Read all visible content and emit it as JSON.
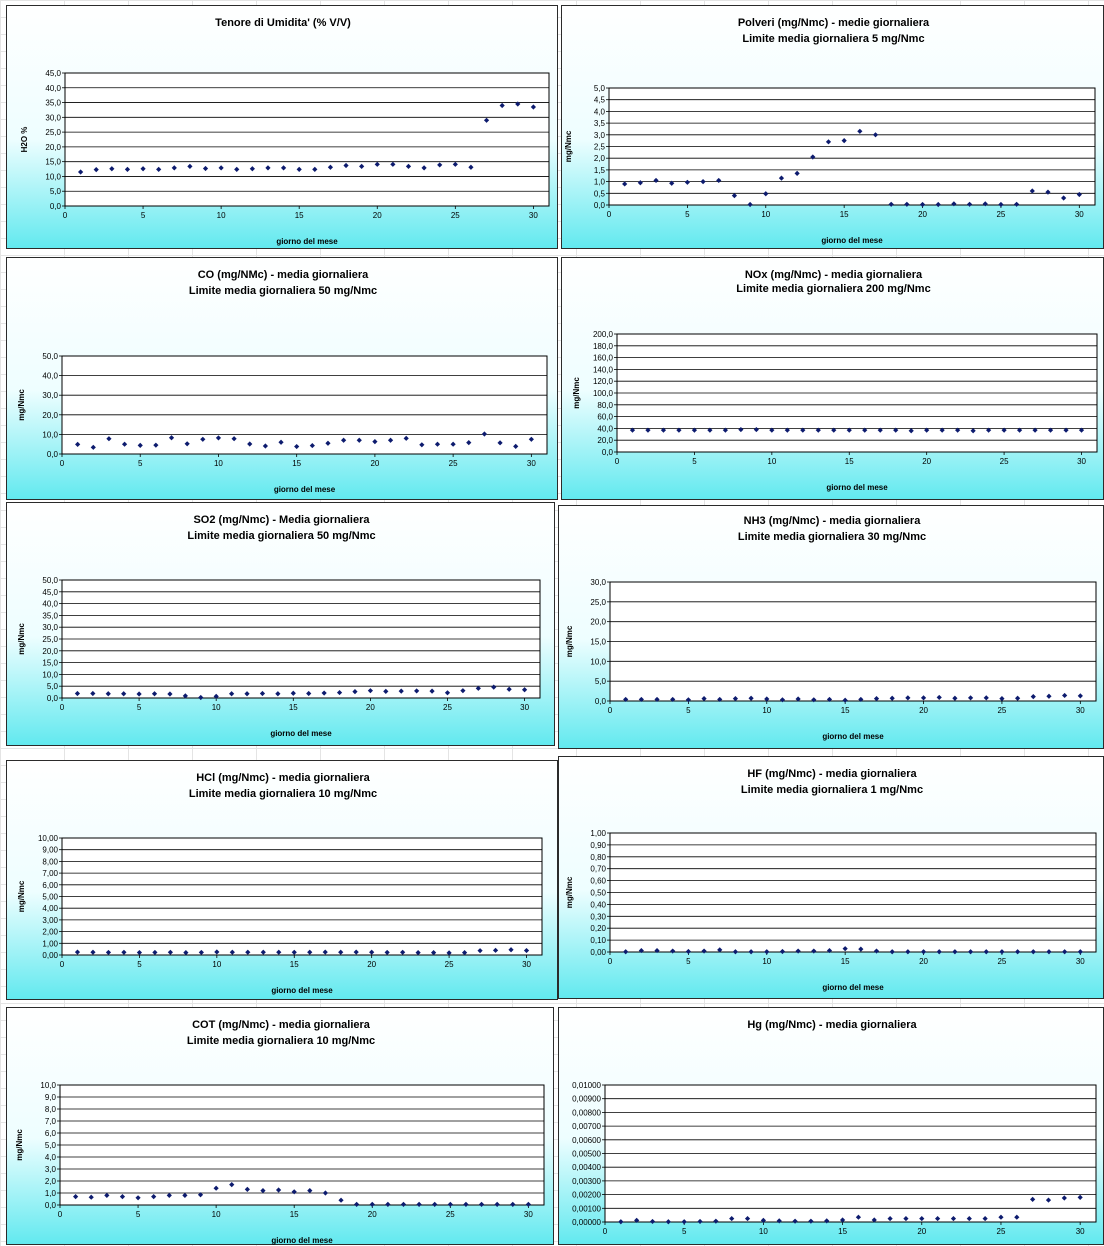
{
  "chart_data": [
    {
      "type": "scatter",
      "title": "Tenore di Umidita' (% V/V)",
      "subtitle": "",
      "xlabel": "giorno del mese",
      "ylabel": "H2O %",
      "xlim": [
        0,
        31
      ],
      "ylim": [
        0,
        45
      ],
      "xticks": [
        "0",
        "5",
        "10",
        "15",
        "20",
        "25",
        "30"
      ],
      "yticks": [
        "0,0",
        "5,0",
        "10,0",
        "15,0",
        "20,0",
        "25,0",
        "30,0",
        "35,0",
        "40,0",
        "45,0"
      ],
      "grid": true,
      "x": [
        1,
        2,
        3,
        4,
        5,
        6,
        7,
        8,
        9,
        10,
        11,
        12,
        13,
        14,
        15,
        16,
        17,
        18,
        19,
        20,
        21,
        22,
        23,
        24,
        25,
        26,
        27,
        28,
        29,
        30
      ],
      "y": [
        11.5,
        12.3,
        12.6,
        12.4,
        12.6,
        12.4,
        12.9,
        13.4,
        12.7,
        12.9,
        12.4,
        12.6,
        12.9,
        12.9,
        12.4,
        12.4,
        13.1,
        13.7,
        13.4,
        14.1,
        14.1,
        13.4,
        12.9,
        13.9,
        14.1,
        13.1,
        29.0,
        34.0,
        34.5,
        33.5
      ]
    },
    {
      "type": "scatter",
      "title": "Polveri (mg/Nmc) - medie giornaliera",
      "subtitle": "Limite media giornaliera 5 mg/Nmc",
      "xlabel": "giorno del mese",
      "ylabel": "mg/Nmc",
      "xlim": [
        0,
        31
      ],
      "ylim": [
        0,
        5
      ],
      "xticks": [
        "0",
        "5",
        "10",
        "15",
        "20",
        "25",
        "30"
      ],
      "yticks": [
        "0,0",
        "0,5",
        "1,0",
        "1,5",
        "2,0",
        "2,5",
        "3,0",
        "3,5",
        "4,0",
        "4,5",
        "5,0"
      ],
      "grid": true,
      "x": [
        1,
        2,
        3,
        4,
        5,
        6,
        7,
        8,
        9,
        10,
        11,
        12,
        13,
        14,
        15,
        16,
        17,
        18,
        19,
        20,
        21,
        22,
        23,
        24,
        25,
        26,
        27,
        28,
        29,
        30
      ],
      "y": [
        0.9,
        0.95,
        1.05,
        0.93,
        0.97,
        1.0,
        1.05,
        0.4,
        0.02,
        0.48,
        1.15,
        1.35,
        2.05,
        2.7,
        2.75,
        3.15,
        3.0,
        0.03,
        0.03,
        0.02,
        0.02,
        0.05,
        0.03,
        0.05,
        0.02,
        0.03,
        0.6,
        0.55,
        0.3,
        0.45
      ]
    },
    {
      "type": "scatter",
      "title": "CO (mg/NMc) - media giornaliera",
      "subtitle": "Limite media giornaliera 50 mg/Nmc",
      "xlabel": "giorno del mese",
      "ylabel": "mg/Nmc",
      "xlim": [
        0,
        31
      ],
      "ylim": [
        0,
        50
      ],
      "xticks": [
        "0",
        "5",
        "10",
        "15",
        "20",
        "25",
        "30"
      ],
      "yticks": [
        "0,0",
        "10,0",
        "20,0",
        "30,0",
        "40,0",
        "50,0"
      ],
      "grid": true,
      "x": [
        1,
        2,
        3,
        4,
        5,
        6,
        7,
        8,
        9,
        10,
        11,
        12,
        13,
        14,
        15,
        16,
        17,
        18,
        19,
        20,
        21,
        22,
        23,
        24,
        25,
        26,
        27,
        28,
        29,
        30
      ],
      "y": [
        4.9,
        3.4,
        7.8,
        5.0,
        4.4,
        4.5,
        8.3,
        5.2,
        7.5,
        8.2,
        7.8,
        5.1,
        4.1,
        6.0,
        3.8,
        4.3,
        5.5,
        7.0,
        7.0,
        6.3,
        7.0,
        8.0,
        4.7,
        5.0,
        5.0,
        5.8,
        10.2,
        5.7,
        3.9,
        7.5
      ]
    },
    {
      "type": "scatter",
      "title": "NOx (mg/Nmc) - media giornaliera",
      "subtitle": "Limite media giornaliera 200 mg/Nmc",
      "xlabel": "giorno del mese",
      "ylabel": "mg/Nmc",
      "xlim": [
        0,
        31
      ],
      "ylim": [
        0,
        200
      ],
      "xticks": [
        "0",
        "5",
        "10",
        "15",
        "20",
        "25",
        "30"
      ],
      "yticks": [
        "0,0",
        "20,0",
        "40,0",
        "60,0",
        "80,0",
        "100,0",
        "120,0",
        "140,0",
        "160,0",
        "180,0",
        "200,0"
      ],
      "grid": true,
      "x": [
        1,
        2,
        3,
        4,
        5,
        6,
        7,
        8,
        9,
        10,
        11,
        12,
        13,
        14,
        15,
        16,
        17,
        18,
        19,
        20,
        21,
        22,
        23,
        24,
        25,
        26,
        27,
        28,
        29,
        30
      ],
      "y": [
        37,
        37,
        37,
        37,
        37,
        37,
        37,
        38,
        38,
        37,
        37,
        37,
        37,
        37,
        37,
        37,
        37,
        37,
        36,
        37,
        37,
        37,
        36,
        37,
        37,
        37,
        37,
        37,
        37,
        37
      ]
    },
    {
      "type": "scatter",
      "title": "SO2 (mg/Nmc) - Media giornaliera",
      "subtitle": "Limite media giornaliera 50 mg/Nmc",
      "xlabel": "giorno del mese",
      "ylabel": "mg/Nmc",
      "xlim": [
        0,
        31
      ],
      "ylim": [
        0,
        50
      ],
      "xticks": [
        "0",
        "5",
        "10",
        "15",
        "20",
        "25",
        "30"
      ],
      "yticks": [
        "0,0",
        "5,0",
        "10,0",
        "15,0",
        "20,0",
        "25,0",
        "30,0",
        "35,0",
        "40,0",
        "45,0",
        "50,0"
      ],
      "grid": true,
      "x": [
        1,
        2,
        3,
        4,
        5,
        6,
        7,
        8,
        9,
        10,
        11,
        12,
        13,
        14,
        15,
        16,
        17,
        18,
        19,
        20,
        21,
        22,
        23,
        24,
        25,
        26,
        27,
        28,
        29,
        30
      ],
      "y": [
        1.9,
        1.9,
        1.8,
        1.8,
        1.7,
        1.8,
        1.7,
        0.9,
        0.2,
        0.7,
        1.8,
        1.8,
        1.9,
        1.8,
        2.0,
        1.9,
        2.1,
        2.3,
        2.7,
        3.1,
        2.8,
        2.9,
        3.0,
        2.9,
        2.2,
        3.1,
        4.1,
        4.6,
        3.7,
        3.5
      ]
    },
    {
      "type": "scatter",
      "title": "NH3 (mg/Nmc) - media giornaliera",
      "subtitle": "Limite media giornaliera 30 mg/Nmc",
      "xlabel": "giorno del mese",
      "ylabel": "mg/Nmc",
      "xlim": [
        0,
        31
      ],
      "ylim": [
        0,
        30
      ],
      "xticks": [
        "0",
        "5",
        "10",
        "15",
        "20",
        "25",
        "30"
      ],
      "yticks": [
        "0,0",
        "5,0",
        "10,0",
        "15,0",
        "20,0",
        "25,0",
        "30,0"
      ],
      "grid": true,
      "x": [
        1,
        2,
        3,
        4,
        5,
        6,
        7,
        8,
        9,
        10,
        11,
        12,
        13,
        14,
        15,
        16,
        17,
        18,
        19,
        20,
        21,
        22,
        23,
        24,
        25,
        26,
        27,
        28,
        29,
        30
      ],
      "y": [
        0.4,
        0.4,
        0.4,
        0.4,
        0.3,
        0.6,
        0.4,
        0.6,
        0.7,
        0.5,
        0.3,
        0.5,
        0.3,
        0.4,
        0.2,
        0.4,
        0.6,
        0.7,
        0.8,
        0.8,
        0.9,
        0.7,
        0.8,
        0.8,
        0.6,
        0.7,
        1.1,
        1.2,
        1.4,
        1.3
      ]
    },
    {
      "type": "scatter",
      "title": "HCl (mg/Nmc) - media giornaliera",
      "subtitle": "Limite media giornaliera 10 mg/Nmc",
      "xlabel": "giorno del mese",
      "ylabel": "mg/Nmc",
      "xlim": [
        0,
        31
      ],
      "ylim": [
        0,
        10
      ],
      "xticks": [
        "0",
        "5",
        "10",
        "15",
        "20",
        "25",
        "30"
      ],
      "yticks": [
        "0,00",
        "1,00",
        "2,00",
        "3,00",
        "4,00",
        "5,00",
        "6,00",
        "7,00",
        "8,00",
        "9,00",
        "10,00"
      ],
      "grid": true,
      "x": [
        1,
        2,
        3,
        4,
        5,
        6,
        7,
        8,
        9,
        10,
        11,
        12,
        13,
        14,
        15,
        16,
        17,
        18,
        19,
        20,
        21,
        22,
        23,
        24,
        25,
        26,
        27,
        28,
        29,
        30
      ],
      "y": [
        0.25,
        0.24,
        0.22,
        0.23,
        0.21,
        0.22,
        0.23,
        0.2,
        0.22,
        0.26,
        0.24,
        0.24,
        0.24,
        0.24,
        0.23,
        0.24,
        0.25,
        0.24,
        0.25,
        0.24,
        0.22,
        0.23,
        0.2,
        0.2,
        0.18,
        0.2,
        0.37,
        0.4,
        0.45,
        0.38
      ]
    },
    {
      "type": "scatter",
      "title": "HF (mg/Nmc) - media giornaliera",
      "subtitle": "Limite media giornaliera 1 mg/Nmc",
      "xlabel": "giorno del mese",
      "ylabel": "mg/Nmc",
      "xlim": [
        0,
        31
      ],
      "ylim": [
        0,
        1
      ],
      "xticks": [
        "0",
        "5",
        "10",
        "15",
        "20",
        "25",
        "30"
      ],
      "yticks": [
        "0,00",
        "0,10",
        "0,20",
        "0,30",
        "0,40",
        "0,50",
        "0,60",
        "0,70",
        "0,80",
        "0,90",
        "1,00"
      ],
      "grid": true,
      "x": [
        1,
        2,
        3,
        4,
        5,
        6,
        7,
        8,
        9,
        10,
        11,
        12,
        13,
        14,
        15,
        16,
        17,
        18,
        19,
        20,
        21,
        22,
        23,
        24,
        25,
        26,
        27,
        28,
        29,
        30
      ],
      "y": [
        0.002,
        0.012,
        0.012,
        0.008,
        0.004,
        0.008,
        0.018,
        0.002,
        0.002,
        0.002,
        0.004,
        0.008,
        0.008,
        0.012,
        0.028,
        0.024,
        0.008,
        0.002,
        0.002,
        0.002,
        0.002,
        0.002,
        0.002,
        0.002,
        0.002,
        0.002,
        0.002,
        0.002,
        0.002,
        0.002
      ]
    },
    {
      "type": "scatter",
      "title": "COT (mg/Nmc) - media giornaliera",
      "subtitle": "Limite media giornaliera 10 mg/Nmc",
      "xlabel": "giorno del mese",
      "ylabel": "mg/Nmc",
      "xlim": [
        0,
        31
      ],
      "ylim": [
        0,
        10
      ],
      "xticks": [
        "0",
        "5",
        "10",
        "15",
        "20",
        "25",
        "30"
      ],
      "yticks": [
        "0,0",
        "1,0",
        "2,0",
        "3,0",
        "4,0",
        "5,0",
        "6,0",
        "7,0",
        "8,0",
        "9,0",
        "10,0"
      ],
      "grid": true,
      "x": [
        1,
        2,
        3,
        4,
        5,
        6,
        7,
        8,
        9,
        10,
        11,
        12,
        13,
        14,
        15,
        16,
        17,
        18,
        19,
        20,
        21,
        22,
        23,
        24,
        25,
        26,
        27,
        28,
        29,
        30
      ],
      "y": [
        0.7,
        0.65,
        0.8,
        0.7,
        0.6,
        0.7,
        0.8,
        0.8,
        0.85,
        1.4,
        1.7,
        1.3,
        1.2,
        1.25,
        1.1,
        1.2,
        1.0,
        0.4,
        0.05,
        0.05,
        0.05,
        0.05,
        0.05,
        0.05,
        0.05,
        0.05,
        0.05,
        0.05,
        0.05,
        0.05
      ]
    },
    {
      "type": "scatter",
      "title": "Hg (mg/Nmc) - media giornaliera",
      "subtitle": "",
      "xlabel": "",
      "ylabel": "",
      "xlim": [
        0,
        31
      ],
      "ylim": [
        0,
        0.01
      ],
      "xticks": [
        "0",
        "5",
        "10",
        "15",
        "20",
        "25",
        "30"
      ],
      "yticks": [
        "0,00000",
        "0,00100",
        "0,00200",
        "0,00300",
        "0,00400",
        "0,00500",
        "0,00600",
        "0,00700",
        "0,00800",
        "0,00900",
        "0,01000"
      ],
      "grid": true,
      "x": [
        1,
        2,
        3,
        4,
        5,
        6,
        7,
        8,
        9,
        10,
        11,
        12,
        13,
        14,
        15,
        16,
        17,
        18,
        19,
        20,
        21,
        22,
        23,
        24,
        25,
        26,
        27,
        28,
        29,
        30
      ],
      "y": [
        2e-05,
        0.00012,
        4e-05,
        2e-05,
        2e-05,
        4e-05,
        6e-05,
        0.00025,
        0.00025,
        0.00012,
        8e-05,
        6e-05,
        6e-05,
        8e-05,
        0.00015,
        0.00035,
        0.00015,
        0.00025,
        0.00025,
        0.00025,
        0.00025,
        0.00025,
        0.00025,
        0.00025,
        0.00035,
        0.00035,
        0.00165,
        0.0016,
        0.00175,
        0.0018
      ]
    }
  ]
}
